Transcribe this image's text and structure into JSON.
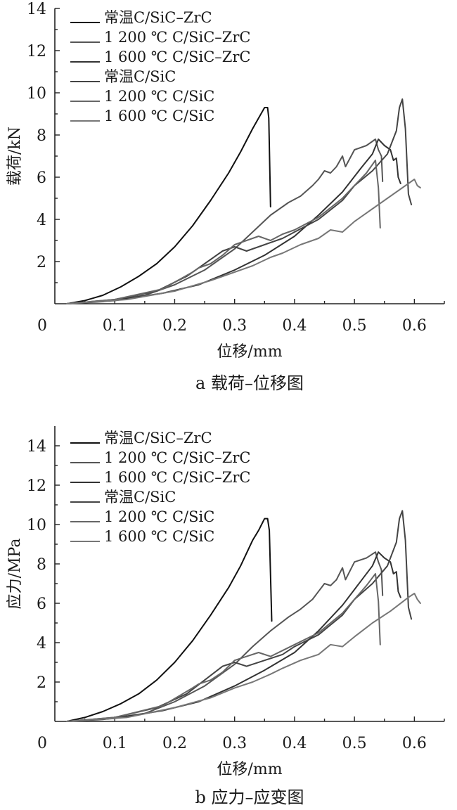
{
  "chart_data": [
    {
      "type": "line",
      "caption": "a 载荷–位移图",
      "xlabel": "位移/mm",
      "ylabel": "载荷/kN",
      "xlim": [
        0,
        0.65
      ],
      "ylim": [
        0,
        14
      ],
      "xticks": [
        "0",
        "0.1",
        "0.2",
        "0.3",
        "0.4",
        "0.5",
        "0.6"
      ],
      "yticks": [
        "2",
        "4",
        "6",
        "8",
        "10",
        "12",
        "14"
      ],
      "grid": false,
      "legend_position": "top-left",
      "series": [
        {
          "name": "常温C/SiC–ZrC",
          "color": "#111111",
          "points": [
            [
              0.02,
              0
            ],
            [
              0.05,
              0.15
            ],
            [
              0.08,
              0.4
            ],
            [
              0.11,
              0.8
            ],
            [
              0.14,
              1.3
            ],
            [
              0.17,
              1.9
            ],
            [
              0.2,
              2.7
            ],
            [
              0.23,
              3.7
            ],
            [
              0.26,
              4.9
            ],
            [
              0.29,
              6.2
            ],
            [
              0.31,
              7.2
            ],
            [
              0.33,
              8.3
            ],
            [
              0.34,
              8.8
            ],
            [
              0.35,
              9.3
            ],
            [
              0.355,
              9.3
            ],
            [
              0.357,
              8.8
            ],
            [
              0.36,
              4.6
            ]
          ]
        },
        {
          "name": "1 200 ℃ C/SiC–ZrC",
          "color": "#555555",
          "points": [
            [
              0.02,
              0
            ],
            [
              0.08,
              0.1
            ],
            [
              0.15,
              0.4
            ],
            [
              0.2,
              0.9
            ],
            [
              0.25,
              1.6
            ],
            [
              0.3,
              2.6
            ],
            [
              0.33,
              3.4
            ],
            [
              0.36,
              4.2
            ],
            [
              0.39,
              4.8
            ],
            [
              0.41,
              5.1
            ],
            [
              0.43,
              5.6
            ],
            [
              0.44,
              5.9
            ],
            [
              0.45,
              6.3
            ],
            [
              0.46,
              6.2
            ],
            [
              0.47,
              6.5
            ],
            [
              0.48,
              7.0
            ],
            [
              0.485,
              6.5
            ],
            [
              0.5,
              7.3
            ],
            [
              0.52,
              7.5
            ],
            [
              0.535,
              7.8
            ],
            [
              0.54,
              7.3
            ],
            [
              0.545,
              7.0
            ],
            [
              0.547,
              5.8
            ]
          ]
        },
        {
          "name": "1 600 ℃ C/SiC–ZrC",
          "color": "#333333",
          "points": [
            [
              0.02,
              0
            ],
            [
              0.1,
              0.15
            ],
            [
              0.18,
              0.5
            ],
            [
              0.24,
              0.9
            ],
            [
              0.3,
              1.6
            ],
            [
              0.35,
              2.3
            ],
            [
              0.4,
              3.2
            ],
            [
              0.44,
              4.2
            ],
            [
              0.48,
              5.3
            ],
            [
              0.51,
              6.4
            ],
            [
              0.53,
              7.1
            ],
            [
              0.54,
              7.8
            ],
            [
              0.55,
              7.5
            ],
            [
              0.56,
              7.3
            ],
            [
              0.565,
              6.8
            ],
            [
              0.57,
              6.9
            ],
            [
              0.573,
              6.0
            ],
            [
              0.577,
              5.7
            ]
          ]
        },
        {
          "name": "常温C/SiC",
          "color": "#444444",
          "points": [
            [
              0.02,
              0
            ],
            [
              0.1,
              0.2
            ],
            [
              0.17,
              0.6
            ],
            [
              0.22,
              1.3
            ],
            [
              0.25,
              1.9
            ],
            [
              0.28,
              2.5
            ],
            [
              0.3,
              2.7
            ],
            [
              0.32,
              2.5
            ],
            [
              0.35,
              2.8
            ],
            [
              0.38,
              3.1
            ],
            [
              0.4,
              3.4
            ],
            [
              0.44,
              4.0
            ],
            [
              0.48,
              4.9
            ],
            [
              0.5,
              5.6
            ],
            [
              0.53,
              6.3
            ],
            [
              0.555,
              7.1
            ],
            [
              0.57,
              8.2
            ],
            [
              0.575,
              9.3
            ],
            [
              0.58,
              9.7
            ],
            [
              0.585,
              8.3
            ],
            [
              0.59,
              5.2
            ],
            [
              0.595,
              4.7
            ]
          ]
        },
        {
          "name": "1 200 ℃ C/SiC",
          "color": "#666666",
          "points": [
            [
              0.02,
              0
            ],
            [
              0.1,
              0.2
            ],
            [
              0.18,
              0.7
            ],
            [
              0.23,
              1.5
            ],
            [
              0.24,
              1.7
            ],
            [
              0.26,
              1.9
            ],
            [
              0.28,
              2.3
            ],
            [
              0.3,
              2.8
            ],
            [
              0.32,
              3.0
            ],
            [
              0.34,
              3.2
            ],
            [
              0.36,
              3.0
            ],
            [
              0.38,
              3.3
            ],
            [
              0.4,
              3.5
            ],
            [
              0.44,
              4.1
            ],
            [
              0.48,
              5.0
            ],
            [
              0.52,
              6.2
            ],
            [
              0.535,
              6.8
            ],
            [
              0.54,
              5.5
            ],
            [
              0.543,
              3.6
            ]
          ]
        },
        {
          "name": "1 600 ℃ C/SiC",
          "color": "#777777",
          "points": [
            [
              0.02,
              0
            ],
            [
              0.12,
              0.2
            ],
            [
              0.2,
              0.6
            ],
            [
              0.26,
              1.1
            ],
            [
              0.3,
              1.5
            ],
            [
              0.33,
              1.8
            ],
            [
              0.36,
              2.2
            ],
            [
              0.38,
              2.4
            ],
            [
              0.41,
              2.8
            ],
            [
              0.44,
              3.1
            ],
            [
              0.46,
              3.5
            ],
            [
              0.48,
              3.4
            ],
            [
              0.5,
              3.9
            ],
            [
              0.53,
              4.5
            ],
            [
              0.56,
              5.1
            ],
            [
              0.59,
              5.7
            ],
            [
              0.6,
              5.9
            ],
            [
              0.605,
              5.6
            ],
            [
              0.61,
              5.5
            ]
          ]
        }
      ]
    },
    {
      "type": "line",
      "caption": "b 应力–应变图",
      "xlabel": "位移/mm",
      "ylabel": "应力/MPa",
      "xlim": [
        0,
        0.65
      ],
      "ylim": [
        0,
        15
      ],
      "xticks": [
        "0",
        "0.1",
        "0.2",
        "0.3",
        "0.4",
        "0.5",
        "0.6"
      ],
      "yticks": [
        "2",
        "4",
        "6",
        "8",
        "10",
        "12",
        "14"
      ],
      "grid": false,
      "legend_position": "top-left",
      "series": [
        {
          "name": "常温C/SiC–ZrC",
          "color": "#111111",
          "points": [
            [
              0.02,
              0
            ],
            [
              0.05,
              0.2
            ],
            [
              0.08,
              0.5
            ],
            [
              0.11,
              0.9
            ],
            [
              0.14,
              1.4
            ],
            [
              0.17,
              2.1
            ],
            [
              0.2,
              3.0
            ],
            [
              0.23,
              4.1
            ],
            [
              0.26,
              5.4
            ],
            [
              0.29,
              6.8
            ],
            [
              0.31,
              7.9
            ],
            [
              0.33,
              9.2
            ],
            [
              0.34,
              9.7
            ],
            [
              0.35,
              10.3
            ],
            [
              0.355,
              10.3
            ],
            [
              0.358,
              9.7
            ],
            [
              0.362,
              5.1
            ]
          ]
        },
        {
          "name": "1 200 ℃ C/SiC–ZrC",
          "color": "#555555",
          "points": [
            [
              0.02,
              0
            ],
            [
              0.08,
              0.1
            ],
            [
              0.15,
              0.4
            ],
            [
              0.2,
              1.0
            ],
            [
              0.25,
              1.8
            ],
            [
              0.3,
              2.9
            ],
            [
              0.33,
              3.8
            ],
            [
              0.36,
              4.6
            ],
            [
              0.39,
              5.3
            ],
            [
              0.41,
              5.7
            ],
            [
              0.43,
              6.2
            ],
            [
              0.44,
              6.6
            ],
            [
              0.45,
              7.0
            ],
            [
              0.46,
              6.9
            ],
            [
              0.47,
              7.2
            ],
            [
              0.48,
              7.8
            ],
            [
              0.485,
              7.2
            ],
            [
              0.5,
              8.1
            ],
            [
              0.52,
              8.3
            ],
            [
              0.535,
              8.6
            ],
            [
              0.54,
              8.1
            ],
            [
              0.545,
              7.7
            ],
            [
              0.547,
              6.4
            ]
          ]
        },
        {
          "name": "1 600 ℃ C/SiC–ZrC",
          "color": "#333333",
          "points": [
            [
              0.02,
              0
            ],
            [
              0.1,
              0.15
            ],
            [
              0.18,
              0.55
            ],
            [
              0.24,
              1.0
            ],
            [
              0.3,
              1.8
            ],
            [
              0.35,
              2.6
            ],
            [
              0.4,
              3.5
            ],
            [
              0.44,
              4.6
            ],
            [
              0.48,
              5.9
            ],
            [
              0.51,
              7.1
            ],
            [
              0.53,
              7.9
            ],
            [
              0.54,
              8.6
            ],
            [
              0.55,
              8.3
            ],
            [
              0.56,
              8.1
            ],
            [
              0.565,
              7.5
            ],
            [
              0.57,
              7.6
            ],
            [
              0.573,
              6.6
            ],
            [
              0.577,
              6.3
            ]
          ]
        },
        {
          "name": "常温C/SiC",
          "color": "#444444",
          "points": [
            [
              0.02,
              0
            ],
            [
              0.1,
              0.2
            ],
            [
              0.17,
              0.7
            ],
            [
              0.22,
              1.4
            ],
            [
              0.25,
              2.1
            ],
            [
              0.28,
              2.8
            ],
            [
              0.3,
              3.0
            ],
            [
              0.32,
              2.8
            ],
            [
              0.35,
              3.1
            ],
            [
              0.38,
              3.4
            ],
            [
              0.4,
              3.8
            ],
            [
              0.44,
              4.4
            ],
            [
              0.48,
              5.4
            ],
            [
              0.5,
              6.2
            ],
            [
              0.53,
              7.0
            ],
            [
              0.555,
              7.9
            ],
            [
              0.57,
              9.1
            ],
            [
              0.575,
              10.3
            ],
            [
              0.58,
              10.7
            ],
            [
              0.585,
              9.2
            ],
            [
              0.59,
              5.8
            ],
            [
              0.595,
              5.2
            ]
          ]
        },
        {
          "name": "1 200 ℃ C/SiC",
          "color": "#666666",
          "points": [
            [
              0.02,
              0
            ],
            [
              0.1,
              0.2
            ],
            [
              0.18,
              0.8
            ],
            [
              0.23,
              1.7
            ],
            [
              0.24,
              1.9
            ],
            [
              0.26,
              2.1
            ],
            [
              0.28,
              2.5
            ],
            [
              0.3,
              3.1
            ],
            [
              0.32,
              3.3
            ],
            [
              0.34,
              3.5
            ],
            [
              0.36,
              3.3
            ],
            [
              0.38,
              3.6
            ],
            [
              0.4,
              3.9
            ],
            [
              0.44,
              4.5
            ],
            [
              0.48,
              5.5
            ],
            [
              0.52,
              6.9
            ],
            [
              0.535,
              7.5
            ],
            [
              0.54,
              6.1
            ],
            [
              0.543,
              3.9
            ]
          ]
        },
        {
          "name": "1 600 ℃ C/SiC",
          "color": "#777777",
          "points": [
            [
              0.02,
              0
            ],
            [
              0.12,
              0.2
            ],
            [
              0.2,
              0.7
            ],
            [
              0.26,
              1.2
            ],
            [
              0.3,
              1.7
            ],
            [
              0.33,
              2.0
            ],
            [
              0.36,
              2.4
            ],
            [
              0.38,
              2.7
            ],
            [
              0.41,
              3.1
            ],
            [
              0.44,
              3.4
            ],
            [
              0.46,
              3.9
            ],
            [
              0.48,
              3.8
            ],
            [
              0.5,
              4.3
            ],
            [
              0.53,
              5.0
            ],
            [
              0.56,
              5.6
            ],
            [
              0.59,
              6.3
            ],
            [
              0.6,
              6.5
            ],
            [
              0.605,
              6.2
            ],
            [
              0.61,
              6.0
            ]
          ]
        }
      ]
    }
  ]
}
